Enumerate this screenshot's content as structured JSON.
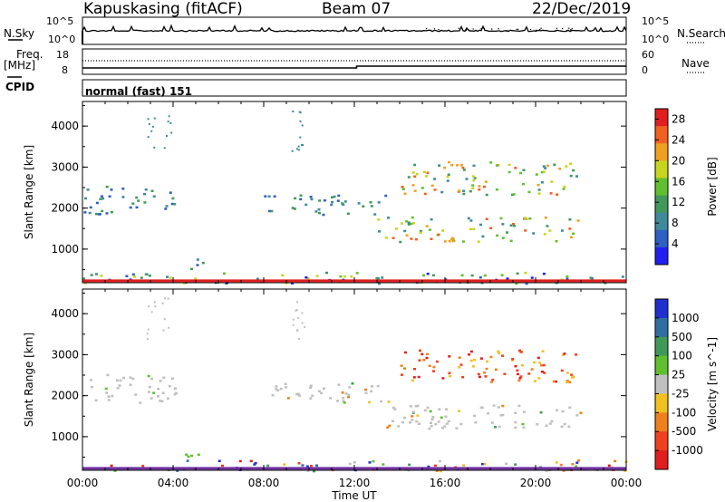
{
  "header": {
    "station": "Kapuskasing (fitACF)",
    "beam": "Beam 07",
    "date": "22/Dec/2019"
  },
  "strip": {
    "nsky_label": "N.Sky",
    "nsearch_label": "N.Search",
    "noise_tick_top": "10^5",
    "noise_tick_bottom": "10^0",
    "freq_label": "Freq.",
    "freq_unit": "[MHz]",
    "freq_tick_top": "18",
    "freq_tick_bottom": "8",
    "nave_label": "Nave",
    "nave_tick_top": "60",
    "nave_tick_bottom": "0",
    "cpid_label": "CPID",
    "cpid_value": "normal (fast) 151"
  },
  "chart_data": [
    {
      "type": "heatmap",
      "title": "",
      "xlabel": "",
      "ylabel": "Slant Range [km]",
      "yticks": [
        "1000",
        "2000",
        "3000",
        "4000"
      ],
      "ylim": [
        180,
        4600
      ],
      "colorbar": {
        "label": "Power [dB]",
        "ticks": [
          "4",
          "8",
          "12",
          "16",
          "20",
          "24",
          "28"
        ],
        "range": [
          0,
          30
        ],
        "colors": [
          "#1f1ff0",
          "#2e5fc2",
          "#3e8a9a",
          "#3f9a5a",
          "#5fc02e",
          "#c8d51e",
          "#f0a01e",
          "#f0601e",
          "#e01e1e"
        ]
      },
      "echo_regions": [
        {
          "t_start": 0.0,
          "t_end": 4.1,
          "range_low": 1850,
          "range_high": 2550
        },
        {
          "t_start": 8.0,
          "t_end": 13.5,
          "range_low": 1850,
          "range_high": 2350
        },
        {
          "t_start": 14.0,
          "t_end": 21.8,
          "range_low": 2350,
          "range_high": 3150
        },
        {
          "t_start": 13.0,
          "t_end": 22.0,
          "range_low": 1200,
          "range_high": 1800
        },
        {
          "t_start": 4.5,
          "t_end": 5.6,
          "range_low": 500,
          "range_high": 800
        },
        {
          "t_start": 0.0,
          "t_end": 24.0,
          "range_low": 180,
          "range_high": 450
        }
      ]
    },
    {
      "type": "heatmap",
      "title": "",
      "xlabel": "Time UT",
      "ylabel": "Slant Range [km]",
      "xticks": [
        "00:00",
        "04:00",
        "08:00",
        "12:00",
        "16:00",
        "20:00",
        "00:00"
      ],
      "yticks": [
        "1000",
        "2000",
        "3000",
        "4000"
      ],
      "ylim": [
        180,
        4600
      ],
      "colorbar": {
        "label": "Velocity [m s^-1]",
        "ticks": [
          "1000",
          "500",
          "100",
          "25",
          "-25",
          "-100",
          "-500",
          "-1000"
        ],
        "range": [
          -1200,
          1200
        ],
        "colors": [
          "#1f2fd0",
          "#2e6fa0",
          "#3f9a5a",
          "#5fc02e",
          "#c0c0c0",
          "#f0c01e",
          "#f0801e",
          "#f0401e",
          "#e01e1e"
        ]
      },
      "echo_regions": [
        {
          "t_start": 0.0,
          "t_end": 4.1,
          "range_low": 1850,
          "range_high": 2550
        },
        {
          "t_start": 8.0,
          "t_end": 13.5,
          "range_low": 1850,
          "range_high": 2350
        },
        {
          "t_start": 14.0,
          "t_end": 21.8,
          "range_low": 2350,
          "range_high": 3150
        },
        {
          "t_start": 13.0,
          "t_end": 22.0,
          "range_low": 1200,
          "range_high": 1800
        },
        {
          "t_start": 4.5,
          "t_end": 5.6,
          "range_low": 500,
          "range_high": 800
        },
        {
          "t_start": 0.0,
          "t_end": 24.0,
          "range_low": 180,
          "range_high": 450
        }
      ]
    }
  ]
}
